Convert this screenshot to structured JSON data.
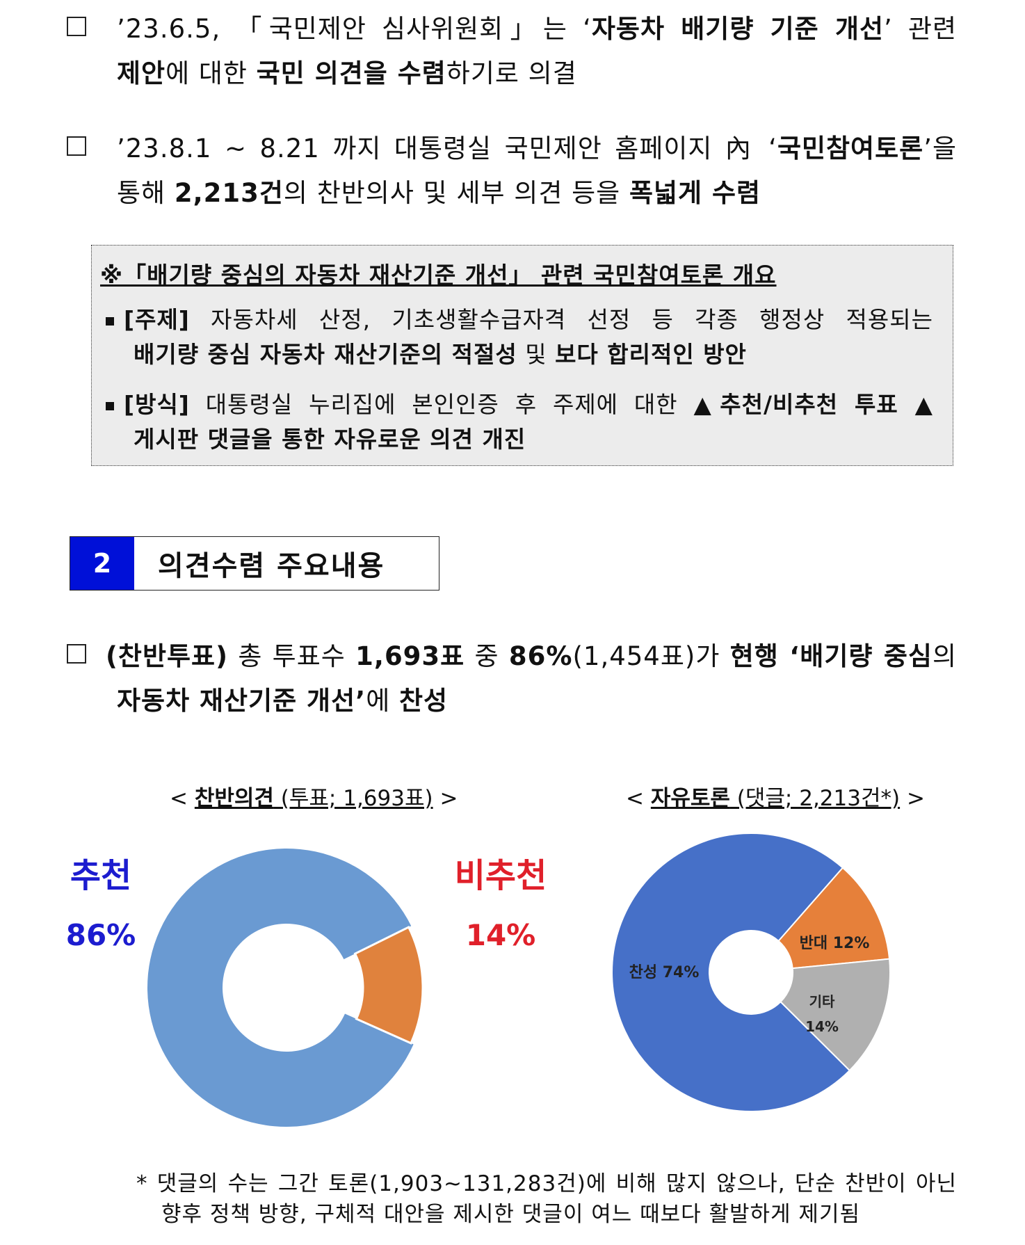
{
  "para1": {
    "line1_a": "’23.6.5, 「국민제안 심사위원회」는 ‘",
    "line1_b": "자동차 배기량 기준 개선",
    "line1_c": "’ 관련",
    "line2_a": "제안",
    "line2_b": "에 대한 ",
    "line2_c": "국민 의견을 수렴",
    "line2_d": "하기로 의결"
  },
  "para2": {
    "line1_a": "’23.8.1 ~ 8.21 까지 대통령실 국민제안 홈페이지 內 ‘",
    "line1_b": "국민참여토론",
    "line1_c": "’을",
    "line2_a": "통해 ",
    "line2_b": "2,213건",
    "line2_c": "의 찬반의사 및 세부 의견 등을 ",
    "line2_d": "폭넓게 수렴"
  },
  "overview": {
    "title": "※「배기량 중심의 자동차 재산기준 개선」 관련 국민참여토론 개요",
    "item1_label": "[주제]",
    "item1_text": " 자동차세 산정, 기초생활수급자격 선정 등 각종 행정상 적용되는",
    "item1_line2": "배기량 중심 자동차 재산기준의 적절성",
    "item1_line2_mid": " 및 ",
    "item1_line2_end": "보다 합리적인 방안",
    "item2_label": "[방식]",
    "item2_text": " 대통령실 누리집에 본인인증 후 주제에 대한 ",
    "item2_bold": "▲추천/비추천 투표 ▲",
    "item2_line2": "게시판 댓글을 통한 자유로운 의견 개진"
  },
  "section": {
    "number": "2",
    "title": "의견수렴 주요내용"
  },
  "para3": {
    "line1_a": "(찬반투표)",
    "line1_b": " 총 투표수 ",
    "line1_c": "1,693표",
    "line1_d": " 중 ",
    "line1_e": "86%",
    "line1_f": "(1,454표)가 ",
    "line1_g": "현행 ‘배기량 중심",
    "line1_h": "의",
    "line2_a": "자동차 재산기준 개선’",
    "line2_b": "에 ",
    "line2_c": "찬성"
  },
  "chart_titles": {
    "left_open": "< ",
    "left_bold": "찬반의견",
    "left_rest": " (투표; 1,693표)",
    "left_close": " >",
    "right_open": "< ",
    "right_bold": "자유토론",
    "right_rest": " (댓글; 2,213건*)",
    "right_close": " >"
  },
  "chart_data": [
    {
      "type": "pie",
      "title": "찬반의견 (투표; 1,693표)",
      "categories": [
        "추천",
        "비추천"
      ],
      "values": [
        86,
        14
      ],
      "value_labels": [
        "86%",
        "14%"
      ],
      "colors": [
        "#6a9ad2",
        "#e0823d"
      ],
      "label_colors": [
        "#1c1ccf",
        "#e0202a"
      ],
      "donut": true
    },
    {
      "type": "pie",
      "title": "자유토론 (댓글; 2,213건*)",
      "categories": [
        "찬성",
        "반대",
        "기타"
      ],
      "values": [
        74,
        12,
        14
      ],
      "value_labels": [
        "74%",
        "12%",
        "14%"
      ],
      "colors": [
        "#4670c8",
        "#e6803a",
        "#b0b0b0"
      ],
      "donut": true
    }
  ],
  "footnote": {
    "line1": "* 댓글의 수는 그간 토론(1,903~131,283건)에 비해 많지 않으나, 단순 찬반이 아닌",
    "line2": "향후 정책 방향, 구체적 대안을 제시한 댓글이 여느 때보다 활발하게 제기됨"
  }
}
